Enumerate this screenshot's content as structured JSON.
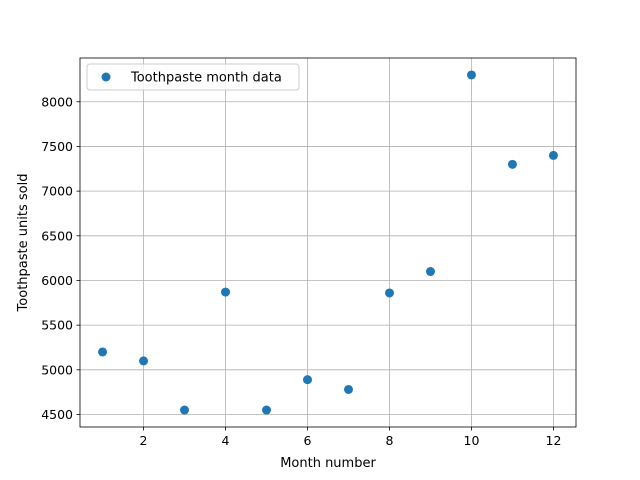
{
  "chart_data": {
    "type": "scatter",
    "title": "",
    "xlabel": "Month number",
    "ylabel": "Toothpaste units sold",
    "xlim": [
      0.45,
      12.55
    ],
    "ylim": [
      4360,
      8490
    ],
    "xticks": [
      2,
      4,
      6,
      8,
      10,
      12
    ],
    "yticks": [
      4500,
      5000,
      5500,
      6000,
      6500,
      7000,
      7500,
      8000
    ],
    "grid": true,
    "legend_position": "top-left",
    "series": [
      {
        "name": "Toothpaste month data",
        "color": "#1f77b4",
        "x": [
          1,
          2,
          3,
          4,
          5,
          6,
          7,
          8,
          9,
          10,
          11,
          12
        ],
        "y": [
          5200,
          5100,
          4550,
          5870,
          4550,
          4890,
          4780,
          5860,
          6100,
          8300,
          7300,
          7400
        ]
      }
    ]
  }
}
